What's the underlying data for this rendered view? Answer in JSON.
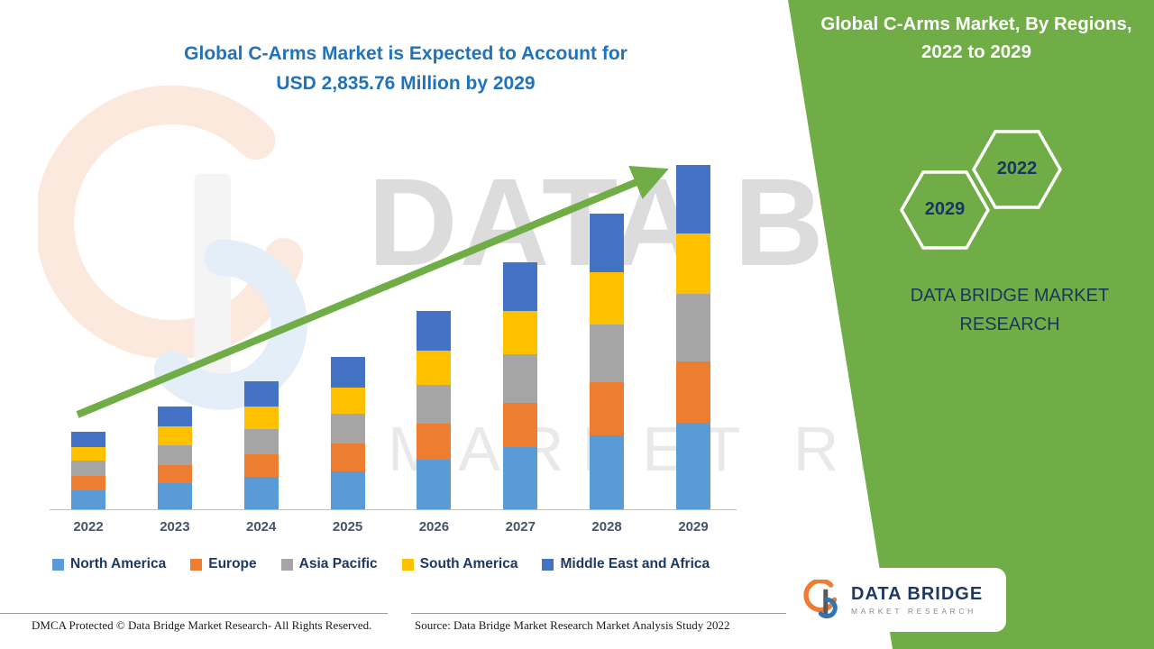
{
  "page": {
    "title_line1": "Global C-Arms Market is Expected to Account for",
    "title_line2": "USD 2,835.76 Million by 2029"
  },
  "side_panel": {
    "title_line1": "Global C-Arms Market, By Regions,",
    "title_line2": "2022 to 2029",
    "hexagons": [
      {
        "label": "2029"
      },
      {
        "label": "2022"
      }
    ],
    "brand_line1": "DATA BRIDGE MARKET",
    "brand_line2": "RESEARCH",
    "accent_color": "#70AD47"
  },
  "logo_box": {
    "name": "DATA BRIDGE",
    "subtitle": "MARKET RESEARCH"
  },
  "watermark": {
    "line1": "DATA BRIDGE",
    "line2": "MARKET RESEARCH"
  },
  "footer": {
    "left": "DMCA Protected © Data Bridge Market Research- All Rights Reserved.",
    "source": "Source: Data Bridge Market Research Market Analysis Study 2022"
  },
  "chart_data": {
    "type": "bar",
    "stacked": true,
    "title": "Global C-Arms Market is Expected to Account for USD 2,835.76 Million by 2029",
    "unit": "USD Million",
    "categories": [
      "2022",
      "2023",
      "2024",
      "2025",
      "2026",
      "2027",
      "2028",
      "2029"
    ],
    "series": [
      {
        "name": "North America",
        "color": "#5B9BD5",
        "values": [
          160,
          215,
          265,
          315,
          410,
          510,
          610,
          710
        ]
      },
      {
        "name": "Europe",
        "color": "#ED7D31",
        "values": [
          115,
          150,
          190,
          225,
          295,
          365,
          440,
          510
        ]
      },
      {
        "name": "Asia Pacific",
        "color": "#A5A5A5",
        "values": [
          125,
          165,
          205,
          245,
          320,
          400,
          475,
          555
        ]
      },
      {
        "name": "South America",
        "color": "#FFC000",
        "values": [
          110,
          150,
          185,
          220,
          285,
          355,
          425,
          500
        ]
      },
      {
        "name": "Middle East and Africa",
        "color": "#4472C4",
        "values": [
          130,
          170,
          210,
          250,
          325,
          405,
          485,
          560.76
        ]
      }
    ],
    "totals": [
      640,
      850,
      1055,
      1255,
      1635,
      2035,
      2435,
      2835.76
    ],
    "ylim": [
      0,
      3000
    ],
    "grid": false,
    "legend_position": "bottom",
    "trend_arrow": true
  }
}
